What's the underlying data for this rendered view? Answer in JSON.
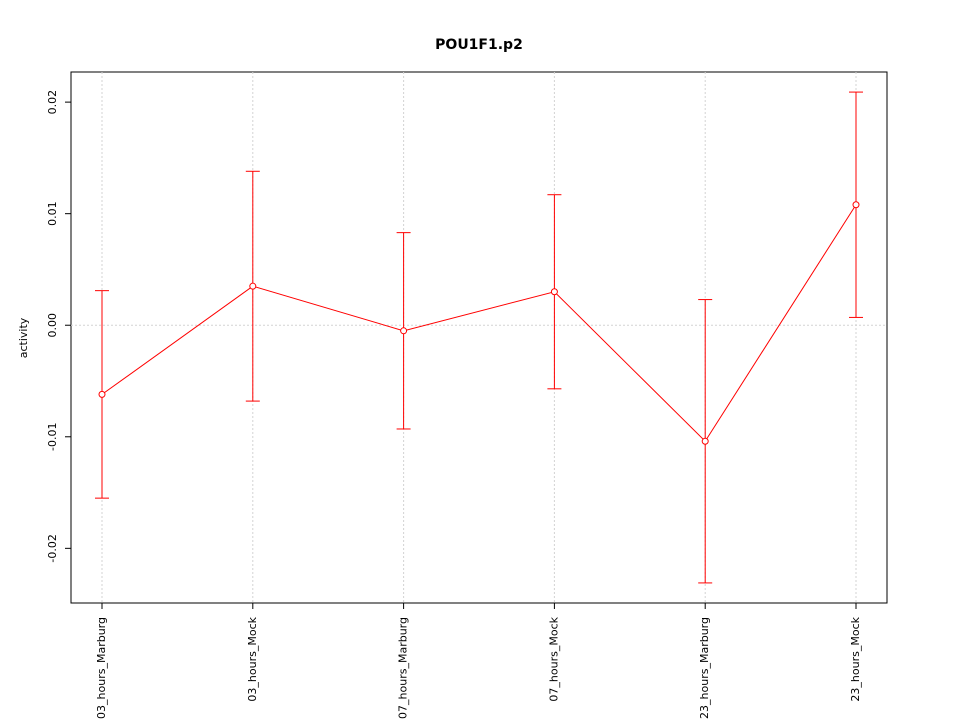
{
  "chart_data": {
    "type": "line",
    "title": "POU1F1.p2",
    "y_label": "activity",
    "categories": [
      "03_hours_Marburg",
      "03_hours_Mock",
      "07_hours_Marburg",
      "07_hours_Mock",
      "23_hours_Marburg",
      "23_hours_Mock"
    ],
    "series": [
      {
        "color": "#ff0000",
        "values": [
          -0.0062,
          0.0035,
          -0.0005,
          0.003,
          -0.0104,
          0.0108
        ],
        "errors": [
          0.0093,
          0.0103,
          0.0088,
          0.0087,
          0.0127,
          0.0101
        ]
      }
    ],
    "ylim": [
      -0.0249,
      0.0227
    ],
    "yticks": [
      -0.02,
      -0.01,
      {
        "value": 0,
        "label": "0.00"
      },
      0.01,
      0.02
    ],
    "grid": true
  }
}
